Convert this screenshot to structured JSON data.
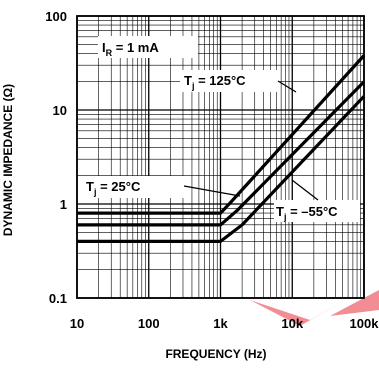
{
  "chart_data": {
    "type": "line",
    "xscale": "log",
    "yscale": "log",
    "xlabel": "FREQUENCY (Hz)",
    "ylabel": "DYNAMIC IMPEDANCE (Ω)",
    "xlim": [
      10,
      100000
    ],
    "ylim": [
      0.1,
      100
    ],
    "x_tick_labels": [
      "10",
      "100",
      "1k",
      "10k",
      "100k"
    ],
    "x_tick_values": [
      10,
      100,
      1000,
      10000,
      100000
    ],
    "y_tick_labels": [
      "0.1",
      "1",
      "10",
      "100"
    ],
    "y_tick_values": [
      0.1,
      1,
      10,
      100
    ],
    "grid": true,
    "condition": {
      "var": "I",
      "sub": "R",
      "rest": " = 1 mA"
    },
    "series": [
      {
        "name": "T",
        "sub": "j",
        "rest": " = 125°C",
        "x": [
          10,
          1000,
          1400,
          100000
        ],
        "y": [
          0.8,
          0.8,
          1.05,
          38
        ]
      },
      {
        "name": "T",
        "sub": "j",
        "rest": " = 25°C",
        "x": [
          10,
          1000,
          1700,
          100000
        ],
        "y": [
          0.6,
          0.6,
          0.85,
          20
        ]
      },
      {
        "name": "T",
        "sub": "j",
        "rest": " = –55°C",
        "x": [
          10,
          1000,
          2000,
          100000
        ],
        "y": [
          0.4,
          0.4,
          0.6,
          14
        ]
      }
    ]
  },
  "watermark": {
    "color": "#e8323c"
  }
}
